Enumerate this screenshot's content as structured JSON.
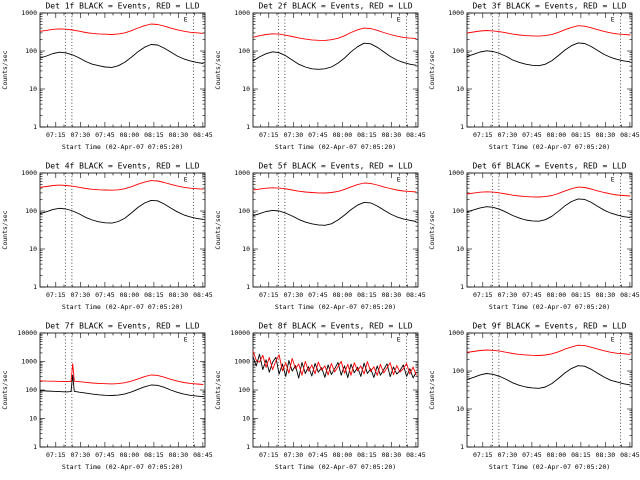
{
  "window": {
    "background": "#ffffff"
  },
  "colors": {
    "events": "#000000",
    "lld": "#ff0000",
    "frame": "#000000",
    "dotted": "#000000"
  },
  "axis": {
    "ylabel": "Counts/sec",
    "xlabel": "Start Time (02-Apr-07 07:05:20)",
    "xlim": [
      0,
      101
    ],
    "grid": false,
    "x_ticks": [
      {
        "label": "07:15",
        "t": 9.7
      },
      {
        "label": "07:30",
        "t": 24.7
      },
      {
        "label": "07:45",
        "t": 39.7
      },
      {
        "label": "08:00",
        "t": 54.7
      },
      {
        "label": "08:15",
        "t": 69.7
      },
      {
        "label": "08:30",
        "t": 84.7
      },
      {
        "label": "08:45",
        "t": 99.7
      }
    ]
  },
  "chart_data": [
    {
      "type": "line",
      "title": "Det 1f BLACK = Events, RED = LLD",
      "ylim": [
        1,
        1000
      ],
      "y_ticks": [
        1,
        10,
        100,
        1000
      ],
      "event_lines_t": [
        15.5,
        19.5,
        94
      ],
      "e_label": {
        "text": "E",
        "t": 88
      },
      "x": [
        0,
        4,
        8,
        12,
        16,
        20,
        24,
        28,
        32,
        36,
        40,
        44,
        48,
        52,
        56,
        60,
        64,
        68,
        72,
        76,
        80,
        84,
        88,
        92,
        96,
        100
      ],
      "series": [
        {
          "name": "Events",
          "color": "events",
          "values": [
            65,
            74,
            86,
            93,
            89,
            79,
            66,
            53,
            45,
            41,
            38,
            37,
            41,
            51,
            69,
            96,
            126,
            148,
            144,
            119,
            94,
            74,
            62,
            55,
            50,
            47
          ]
        },
        {
          "name": "LLD",
          "color": "lld",
          "values": [
            330,
            348,
            372,
            382,
            374,
            356,
            331,
            306,
            291,
            281,
            276,
            272,
            281,
            301,
            342,
            402,
            462,
            512,
            498,
            452,
            401,
            362,
            331,
            311,
            301,
            291
          ]
        }
      ]
    },
    {
      "type": "line",
      "title": "Det 2f BLACK = Events, RED = LLD",
      "ylim": [
        1,
        1000
      ],
      "y_ticks": [
        1,
        10,
        100,
        1000
      ],
      "event_lines_t": [
        15.5,
        19.5,
        94
      ],
      "e_label": {
        "text": "E",
        "t": 88
      },
      "x": [
        0,
        4,
        8,
        12,
        16,
        20,
        24,
        28,
        32,
        36,
        40,
        44,
        48,
        52,
        56,
        60,
        64,
        68,
        72,
        76,
        80,
        84,
        88,
        92,
        96,
        100
      ],
      "series": [
        {
          "name": "Events",
          "color": "events",
          "values": [
            55,
            70,
            85,
            95,
            90,
            75,
            58,
            45,
            38,
            34,
            33,
            34,
            38,
            48,
            65,
            95,
            130,
            160,
            155,
            125,
            95,
            72,
            58,
            50,
            45,
            42
          ]
        },
        {
          "name": "LLD",
          "color": "lld",
          "values": [
            230,
            252,
            271,
            284,
            279,
            261,
            241,
            221,
            206,
            196,
            191,
            190,
            198,
            216,
            251,
            306,
            361,
            401,
            391,
            351,
            306,
            271,
            246,
            228,
            218,
            212
          ]
        }
      ]
    },
    {
      "type": "line",
      "title": "Det 3f BLACK = Events, RED = LLD",
      "ylim": [
        1,
        1000
      ],
      "y_ticks": [
        1,
        10,
        100,
        1000
      ],
      "event_lines_t": [
        15.5,
        19.5,
        94
      ],
      "e_label": {
        "text": "E",
        "t": 88
      },
      "x": [
        0,
        4,
        8,
        12,
        16,
        20,
        24,
        28,
        32,
        36,
        40,
        44,
        48,
        52,
        56,
        60,
        64,
        68,
        72,
        76,
        80,
        84,
        88,
        92,
        96,
        100
      ],
      "series": [
        {
          "name": "Events",
          "color": "events",
          "values": [
            72,
            82,
            94,
            101,
            97,
            86,
            72,
            58,
            50,
            45,
            42,
            41,
            45,
            56,
            76,
            106,
            139,
            163,
            158,
            131,
            103,
            81,
            68,
            60,
            55,
            52
          ]
        },
        {
          "name": "LLD",
          "color": "lld",
          "values": [
            300,
            316,
            336,
            346,
            339,
            323,
            301,
            278,
            264,
            255,
            250,
            247,
            255,
            273,
            310,
            364,
            418,
            462,
            450,
            409,
            363,
            328,
            300,
            282,
            273,
            264
          ]
        }
      ]
    },
    {
      "type": "line",
      "title": "Det 4f BLACK = Events, RED = LLD",
      "ylim": [
        1,
        1000
      ],
      "y_ticks": [
        1,
        10,
        100,
        1000
      ],
      "event_lines_t": [
        15.5,
        19.5,
        94
      ],
      "e_label": {
        "text": "E",
        "t": 88
      },
      "x": [
        0,
        4,
        8,
        12,
        16,
        20,
        24,
        28,
        32,
        36,
        40,
        44,
        48,
        52,
        56,
        60,
        64,
        68,
        72,
        76,
        80,
        84,
        88,
        92,
        96,
        100
      ],
      "series": [
        {
          "name": "Events",
          "color": "events",
          "values": [
            85,
            96,
            110,
            118,
            113,
            100,
            84,
            68,
            58,
            52,
            49,
            48,
            53,
            65,
            89,
            124,
            162,
            190,
            185,
            153,
            120,
            95,
            79,
            70,
            64,
            60
          ]
        },
        {
          "name": "LLD",
          "color": "lld",
          "values": [
            420,
            441,
            468,
            479,
            470,
            449,
            420,
            391,
            373,
            362,
            356,
            352,
            362,
            386,
            435,
            506,
            575,
            630,
            615,
            562,
            504,
            458,
            421,
            398,
            386,
            374
          ]
        }
      ]
    },
    {
      "type": "line",
      "title": "Det 5f BLACK = Events, RED = LLD",
      "ylim": [
        1,
        1000
      ],
      "y_ticks": [
        1,
        10,
        100,
        1000
      ],
      "event_lines_t": [
        15.5,
        19.5,
        94
      ],
      "e_label": {
        "text": "E",
        "t": 88
      },
      "x": [
        0,
        4,
        8,
        12,
        16,
        20,
        24,
        28,
        32,
        36,
        40,
        44,
        48,
        52,
        56,
        60,
        64,
        68,
        72,
        76,
        80,
        84,
        88,
        92,
        96,
        100
      ],
      "series": [
        {
          "name": "Events",
          "color": "events",
          "values": [
            75,
            85,
            97,
            104,
            100,
            88,
            74,
            60,
            51,
            46,
            43,
            42,
            46,
            58,
            78,
            109,
            143,
            168,
            163,
            135,
            106,
            84,
            70,
            62,
            57,
            53
          ]
        },
        {
          "name": "LLD",
          "color": "lld",
          "values": [
            360,
            377,
            399,
            409,
            401,
            383,
            358,
            332,
            316,
            306,
            300,
            297,
            306,
            327,
            370,
            432,
            494,
            545,
            531,
            484,
            431,
            390,
            358,
            337,
            327,
            316
          ]
        }
      ]
    },
    {
      "type": "line",
      "title": "Det 6f BLACK = Events, RED = LLD",
      "ylim": [
        1,
        1000
      ],
      "y_ticks": [
        1,
        10,
        100,
        1000
      ],
      "event_lines_t": [
        15.5,
        19.5,
        94
      ],
      "e_label": {
        "text": "E",
        "t": 88
      },
      "x": [
        0,
        4,
        8,
        12,
        16,
        20,
        24,
        28,
        32,
        36,
        40,
        44,
        48,
        52,
        56,
        60,
        64,
        68,
        72,
        76,
        80,
        84,
        88,
        92,
        96,
        100
      ],
      "series": [
        {
          "name": "Events",
          "color": "events",
          "values": [
            95,
            107,
            121,
            130,
            125,
            111,
            93,
            76,
            65,
            58,
            55,
            54,
            59,
            73,
            99,
            137,
            178,
            208,
            202,
            168,
            132,
            105,
            88,
            78,
            71,
            67
          ]
        },
        {
          "name": "LLD",
          "color": "lld",
          "values": [
            280,
            295,
            312,
            320,
            314,
            300,
            280,
            260,
            248,
            240,
            235,
            233,
            240,
            256,
            290,
            338,
            386,
            425,
            415,
            379,
            338,
            306,
            281,
            264,
            256,
            248
          ]
        }
      ]
    },
    {
      "type": "line",
      "title": "Det 7f BLACK = Events, RED = LLD",
      "ylim": [
        1,
        10000
      ],
      "y_ticks": [
        1,
        10,
        100,
        1000,
        10000
      ],
      "event_lines_t": [
        15.5,
        19.5,
        94
      ],
      "e_label": {
        "text": "E",
        "t": 88
      },
      "x": [
        0,
        4,
        8,
        12,
        16,
        19,
        20,
        21,
        24,
        28,
        32,
        36,
        40,
        44,
        48,
        52,
        56,
        60,
        64,
        68,
        72,
        76,
        80,
        84,
        88,
        92,
        96,
        100
      ],
      "series": [
        {
          "name": "Events",
          "color": "events",
          "values": [
            95,
            92,
            90,
            88,
            86,
            88,
            330,
            90,
            84,
            78,
            72,
            68,
            65,
            64,
            66,
            73,
            86,
            106,
            130,
            150,
            146,
            124,
            100,
            83,
            72,
            65,
            61,
            58
          ]
        },
        {
          "name": "LLD",
          "color": "lld",
          "values": [
            210,
            206,
            203,
            200,
            198,
            200,
            830,
            204,
            196,
            186,
            176,
            170,
            166,
            164,
            168,
            180,
            205,
            245,
            295,
            335,
            326,
            282,
            238,
            205,
            183,
            170,
            162,
            156
          ]
        }
      ]
    },
    {
      "type": "line",
      "title": "Det 8f BLACK = Events, RED = LLD",
      "ylim": [
        1,
        10000
      ],
      "y_ticks": [
        1,
        10,
        100,
        1000,
        10000
      ],
      "event_lines_t": [
        15.5,
        19.5,
        94
      ],
      "e_label": {
        "text": "E",
        "t": 88
      },
      "x": [
        0,
        2,
        4,
        6,
        8,
        10,
        12,
        14,
        16,
        18,
        20,
        22,
        24,
        26,
        28,
        30,
        32,
        34,
        36,
        38,
        40,
        42,
        44,
        46,
        48,
        50,
        52,
        54,
        56,
        58,
        60,
        62,
        64,
        66,
        68,
        70,
        72,
        74,
        76,
        78,
        80,
        82,
        84,
        86,
        88,
        90,
        92,
        94,
        96,
        98,
        100
      ],
      "series": [
        {
          "name": "Events",
          "color": "events",
          "values": [
            1500,
            700,
            1800,
            520,
            1150,
            420,
            950,
            1400,
            360,
            820,
            300,
            1080,
            460,
            720,
            260,
            920,
            380,
            660,
            310,
            860,
            420,
            610,
            280,
            760,
            350,
            560,
            920,
            330,
            700,
            270,
            810,
            400,
            630,
            300,
            880,
            380,
            560,
            275,
            700,
            330,
            520,
            830,
            295,
            640,
            360,
            480,
            760,
            300,
            560,
            265,
            430
          ]
        },
        {
          "name": "LLD",
          "color": "lld",
          "values": [
            2300,
            1100,
            950,
            1650,
            620,
            1380,
            520,
            1050,
            1700,
            470,
            900,
            390,
            1280,
            560,
            820,
            330,
            1020,
            460,
            760,
            370,
            960,
            500,
            700,
            340,
            860,
            430,
            660,
            1010,
            390,
            800,
            330,
            910,
            470,
            700,
            365,
            1000,
            450,
            650,
            325,
            800,
            395,
            600,
            900,
            345,
            720,
            420,
            560,
            850,
            365,
            640,
            320
          ]
        }
      ]
    },
    {
      "type": "line",
      "title": "Det 9f BLACK = Events, RED = LLD",
      "ylim": [
        1,
        1000
      ],
      "y_ticks": [
        1,
        10,
        100,
        1000
      ],
      "event_lines_t": [
        15.5,
        19.5,
        94
      ],
      "e_label": {
        "text": "E",
        "t": 88
      },
      "x": [
        0,
        4,
        8,
        12,
        16,
        20,
        24,
        28,
        32,
        36,
        40,
        44,
        48,
        52,
        56,
        60,
        64,
        68,
        72,
        76,
        80,
        84,
        88,
        92,
        96,
        100
      ],
      "series": [
        {
          "name": "Events",
          "color": "events",
          "values": [
            60,
            68,
            79,
            86,
            82,
            72,
            60,
            49,
            42,
            38,
            36,
            35,
            38,
            47,
            64,
            89,
            117,
            138,
            134,
            111,
            87,
            69,
            57,
            51,
            46,
            43
          ]
        },
        {
          "name": "LLD",
          "color": "lld",
          "values": [
            310,
            326,
            347,
            357,
            350,
            333,
            311,
            288,
            274,
            265,
            259,
            256,
            264,
            283,
            321,
            377,
            432,
            478,
            466,
            423,
            376,
            340,
            311,
            292,
            283,
            274
          ]
        }
      ]
    }
  ]
}
